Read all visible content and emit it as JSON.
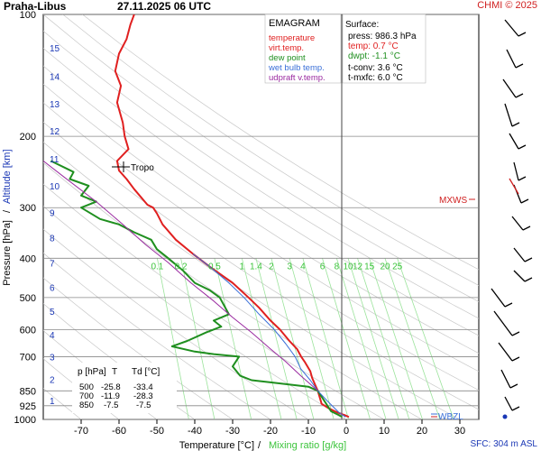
{
  "header": {
    "station": "Praha-Libus",
    "datetime": "27.11.2025 06 UTC",
    "copyright": "CHMI © 2025"
  },
  "legend": {
    "title": "EMAGRAM",
    "items": [
      {
        "label": "temperature",
        "color": "#e02020"
      },
      {
        "label": "virt.temp.",
        "color": "#e02020"
      },
      {
        "label": "dew point",
        "color": "#1f8f1f"
      },
      {
        "label": "wet bulb temp.",
        "color": "#3a6fd8"
      },
      {
        "label": "udpraft v.temp.",
        "color": "#9a2aa0"
      }
    ]
  },
  "surface": {
    "title": "Surface:",
    "press": "press: 986.3 hPa",
    "temp": "temp: 0.7 °C",
    "dwpt": "dwpt: -1.1 °C",
    "tconv": "t-conv: 3.6 °C",
    "tmxfc": "t-mxfc: 6.0 °C"
  },
  "levels_table": {
    "headers": [
      "p [hPa]",
      "T",
      "Td [°C]"
    ],
    "rows": [
      [
        "500",
        "-25.8",
        "-33.4"
      ],
      [
        "700",
        "-11.9",
        "-28.3"
      ],
      [
        "850",
        "-7.5",
        "-7.5"
      ]
    ]
  },
  "labels": {
    "tropo": "Tropo",
    "mxws": "MXWS",
    "wbzl": "WBZL",
    "sfc": "SFC: 304 m ASL",
    "xlabel_temp": "Temperature [°C]",
    "xlabel_sep": "/",
    "xlabel_mix": "Mixing ratio [g/kg]",
    "ylabel_press": "Pressure [hPa]",
    "ylabel_sep": "/",
    "ylabel_alt": "Altitude [km]"
  },
  "chart_data": {
    "type": "line",
    "title": "EMAGRAM",
    "xlabel": "Temperature [°C] / Mixing ratio [g/kg]",
    "ylabel": "Pressure [hPa] / Altitude [km]",
    "xlim": [
      -80,
      35
    ],
    "ylim": [
      1000,
      100
    ],
    "y_scale": "log",
    "x_ticks": [
      -70,
      -60,
      -50,
      -40,
      -30,
      -20,
      -10,
      0,
      10,
      20,
      30
    ],
    "p_ticks": [
      100,
      200,
      300,
      400,
      500,
      600,
      700,
      850,
      925,
      1000
    ],
    "alt_ticks": [
      {
        "km": "1",
        "p": 898
      },
      {
        "km": "2",
        "p": 796
      },
      {
        "km": "3",
        "p": 700
      },
      {
        "km": "4",
        "p": 617
      },
      {
        "km": "5",
        "p": 540
      },
      {
        "km": "6",
        "p": 472
      },
      {
        "km": "7",
        "p": 411
      },
      {
        "km": "8",
        "p": 356
      },
      {
        "km": "9",
        "p": 308
      },
      {
        "km": "10",
        "p": 265
      },
      {
        "km": "11",
        "p": 227
      },
      {
        "km": "12",
        "p": 194
      },
      {
        "km": "13",
        "p": 166
      },
      {
        "km": "14",
        "p": 142
      },
      {
        "km": "15",
        "p": 121
      }
    ],
    "mixing_ratio_labels": [
      "0.1",
      "0.2",
      "0.5",
      "1",
      "1.4",
      "2",
      "3",
      "4",
      "6",
      "8",
      "10",
      "12",
      "15",
      "20",
      "25"
    ],
    "series": [
      {
        "name": "temperature",
        "color": "#e02020",
        "points": [
          [
            0.7,
            986
          ],
          [
            -0.5,
            975
          ],
          [
            -2.5,
            960
          ],
          [
            -4.5,
            940
          ],
          [
            -6.5,
            915
          ],
          [
            -7.5,
            850
          ],
          [
            -8.0,
            830
          ],
          [
            -9.0,
            790
          ],
          [
            -9.5,
            760
          ],
          [
            -11.0,
            720
          ],
          [
            -11.9,
            700
          ],
          [
            -13.0,
            670
          ],
          [
            -15.0,
            640
          ],
          [
            -17.5,
            600
          ],
          [
            -20.0,
            570
          ],
          [
            -23.0,
            530
          ],
          [
            -25.8,
            500
          ],
          [
            -30.0,
            460
          ],
          [
            -36.0,
            420
          ],
          [
            -40.5,
            390
          ],
          [
            -45.0,
            360
          ],
          [
            -48.5,
            330
          ],
          [
            -50.0,
            310
          ],
          [
            -51.0,
            300
          ],
          [
            -52.5,
            295
          ],
          [
            -56.0,
            270
          ],
          [
            -58.0,
            255
          ],
          [
            -60.0,
            243
          ],
          [
            -60.5,
            230
          ],
          [
            -57.5,
            215
          ],
          [
            -58.5,
            200
          ],
          [
            -59.0,
            185
          ],
          [
            -60.5,
            165
          ],
          [
            -59.5,
            150
          ],
          [
            -61.0,
            138
          ],
          [
            -60.0,
            125
          ],
          [
            -58.0,
            115
          ],
          [
            -57.0,
            106
          ],
          [
            -56.0,
            100
          ]
        ]
      },
      {
        "name": "dew point",
        "color": "#1f8f1f",
        "points": [
          [
            -1.1,
            986
          ],
          [
            -2.0,
            975
          ],
          [
            -4.0,
            955
          ],
          [
            -7.5,
            850
          ],
          [
            -10.0,
            830
          ],
          [
            -20.0,
            810
          ],
          [
            -25.0,
            800
          ],
          [
            -28.0,
            780
          ],
          [
            -30.0,
            740
          ],
          [
            -28.3,
            700
          ],
          [
            -35.0,
            690
          ],
          [
            -40.0,
            680
          ],
          [
            -46.0,
            660
          ],
          [
            -42.0,
            640
          ],
          [
            -37.0,
            610
          ],
          [
            -33.0,
            590
          ],
          [
            -35.0,
            570
          ],
          [
            -31.0,
            550
          ],
          [
            -33.4,
            500
          ],
          [
            -36.0,
            480
          ],
          [
            -40.0,
            460
          ],
          [
            -43.0,
            430
          ],
          [
            -47.0,
            400
          ],
          [
            -50.0,
            380
          ],
          [
            -51.5,
            360
          ],
          [
            -56.0,
            345
          ],
          [
            -60.0,
            330
          ],
          [
            -65.0,
            320
          ],
          [
            -70.0,
            300
          ],
          [
            -66.0,
            290
          ],
          [
            -70.0,
            280
          ],
          [
            -68.0,
            265
          ],
          [
            -73.0,
            255
          ],
          [
            -72.0,
            245
          ],
          [
            -78.0,
            230
          ]
        ]
      },
      {
        "name": "wet bulb temp.",
        "color": "#3a6fd8",
        "points": [
          [
            -0.2,
            986
          ],
          [
            -2.0,
            960
          ],
          [
            -5.0,
            900
          ],
          [
            -7.5,
            850
          ],
          [
            -9.5,
            800
          ],
          [
            -12.0,
            750
          ],
          [
            -13.5,
            700
          ],
          [
            -16.0,
            650
          ],
          [
            -19.0,
            600
          ],
          [
            -23.0,
            550
          ],
          [
            -27.0,
            500
          ],
          [
            -31.0,
            460
          ],
          [
            -36.0,
            420
          ],
          [
            -40.5,
            390
          ]
        ]
      },
      {
        "name": "udpraft v.temp.",
        "color": "#9a2aa0",
        "points": [
          [
            -7.5,
            850
          ],
          [
            -12.0,
            780
          ],
          [
            -16.0,
            720
          ],
          [
            -20.0,
            670
          ],
          [
            -25.0,
            610
          ],
          [
            -30.0,
            560
          ],
          [
            -35.0,
            510
          ],
          [
            -41.0,
            460
          ],
          [
            -47.0,
            410
          ],
          [
            -53.0,
            370
          ],
          [
            -59.0,
            330
          ],
          [
            -66.0,
            290
          ],
          [
            -75.0,
            250
          ],
          [
            -80.0,
            230
          ]
        ]
      }
    ],
    "annotations": [
      "Tropo",
      "MXWS",
      "WBZL"
    ]
  }
}
